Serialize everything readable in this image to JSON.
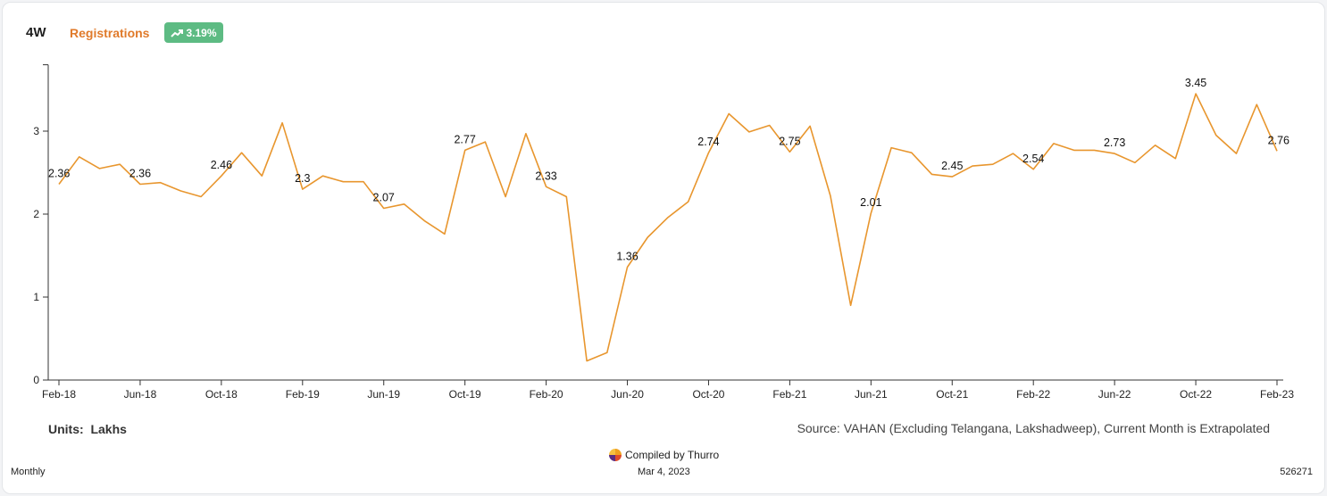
{
  "header": {
    "segment": "4W",
    "metric": "Registrations",
    "change_badge": "3.19%",
    "badge_color": "#5dbb83",
    "badge_icon": "trend-up-icon"
  },
  "footer": {
    "units_label": "Units:",
    "units_value": "Lakhs",
    "source": "Source: VAHAN (Excluding Telangana, Lakshadweep), Current Month is Extrapolated",
    "compiled_by": "Compiled by Thurro",
    "date": "Mar 4, 2023",
    "frequency": "Monthly",
    "record_id": "526271"
  },
  "chart_data": {
    "type": "line",
    "line_color": "#e8962e",
    "ylim": [
      0,
      3.8
    ],
    "yticks": [
      0,
      1,
      2,
      3
    ],
    "x_tick_labels": [
      "Feb-18",
      "Jun-18",
      "Oct-18",
      "Feb-19",
      "Jun-19",
      "Oct-19",
      "Feb-20",
      "Jun-20",
      "Oct-20",
      "Feb-21",
      "Jun-21",
      "Oct-21",
      "Feb-22",
      "Jun-22",
      "Oct-22",
      "Feb-23"
    ],
    "series": [
      {
        "values": [
          2.36,
          2.69,
          2.55,
          2.6,
          2.36,
          2.38,
          2.28,
          2.21,
          2.46,
          2.74,
          2.46,
          3.1,
          2.3,
          2.46,
          2.39,
          2.39,
          2.07,
          2.12,
          1.92,
          1.76,
          2.77,
          2.87,
          2.21,
          2.97,
          2.33,
          2.21,
          0.23,
          0.33,
          1.36,
          1.72,
          1.96,
          2.15,
          2.74,
          3.21,
          2.99,
          3.07,
          2.75,
          3.06,
          2.22,
          0.9,
          2.01,
          2.8,
          2.74,
          2.48,
          2.45,
          2.58,
          2.6,
          2.73,
          2.54,
          2.85,
          2.77,
          2.77,
          2.73,
          2.62,
          2.83,
          2.67,
          3.45,
          2.95,
          2.73,
          3.32,
          2.76
        ]
      }
    ],
    "data_labels": [
      {
        "index": 0,
        "text": "2.36"
      },
      {
        "index": 4,
        "text": "2.36"
      },
      {
        "index": 8,
        "text": "2.46"
      },
      {
        "index": 12,
        "text": "2.3"
      },
      {
        "index": 16,
        "text": "2.07"
      },
      {
        "index": 20,
        "text": "2.77"
      },
      {
        "index": 24,
        "text": "2.33"
      },
      {
        "index": 28,
        "text": "1.36"
      },
      {
        "index": 32,
        "text": "2.74"
      },
      {
        "index": 36,
        "text": "2.75"
      },
      {
        "index": 40,
        "text": "2.01"
      },
      {
        "index": 44,
        "text": "2.45"
      },
      {
        "index": 48,
        "text": "2.54"
      },
      {
        "index": 52,
        "text": "2.73"
      },
      {
        "index": 56,
        "text": "3.45"
      },
      {
        "index": 60,
        "text": "2.76"
      }
    ]
  }
}
